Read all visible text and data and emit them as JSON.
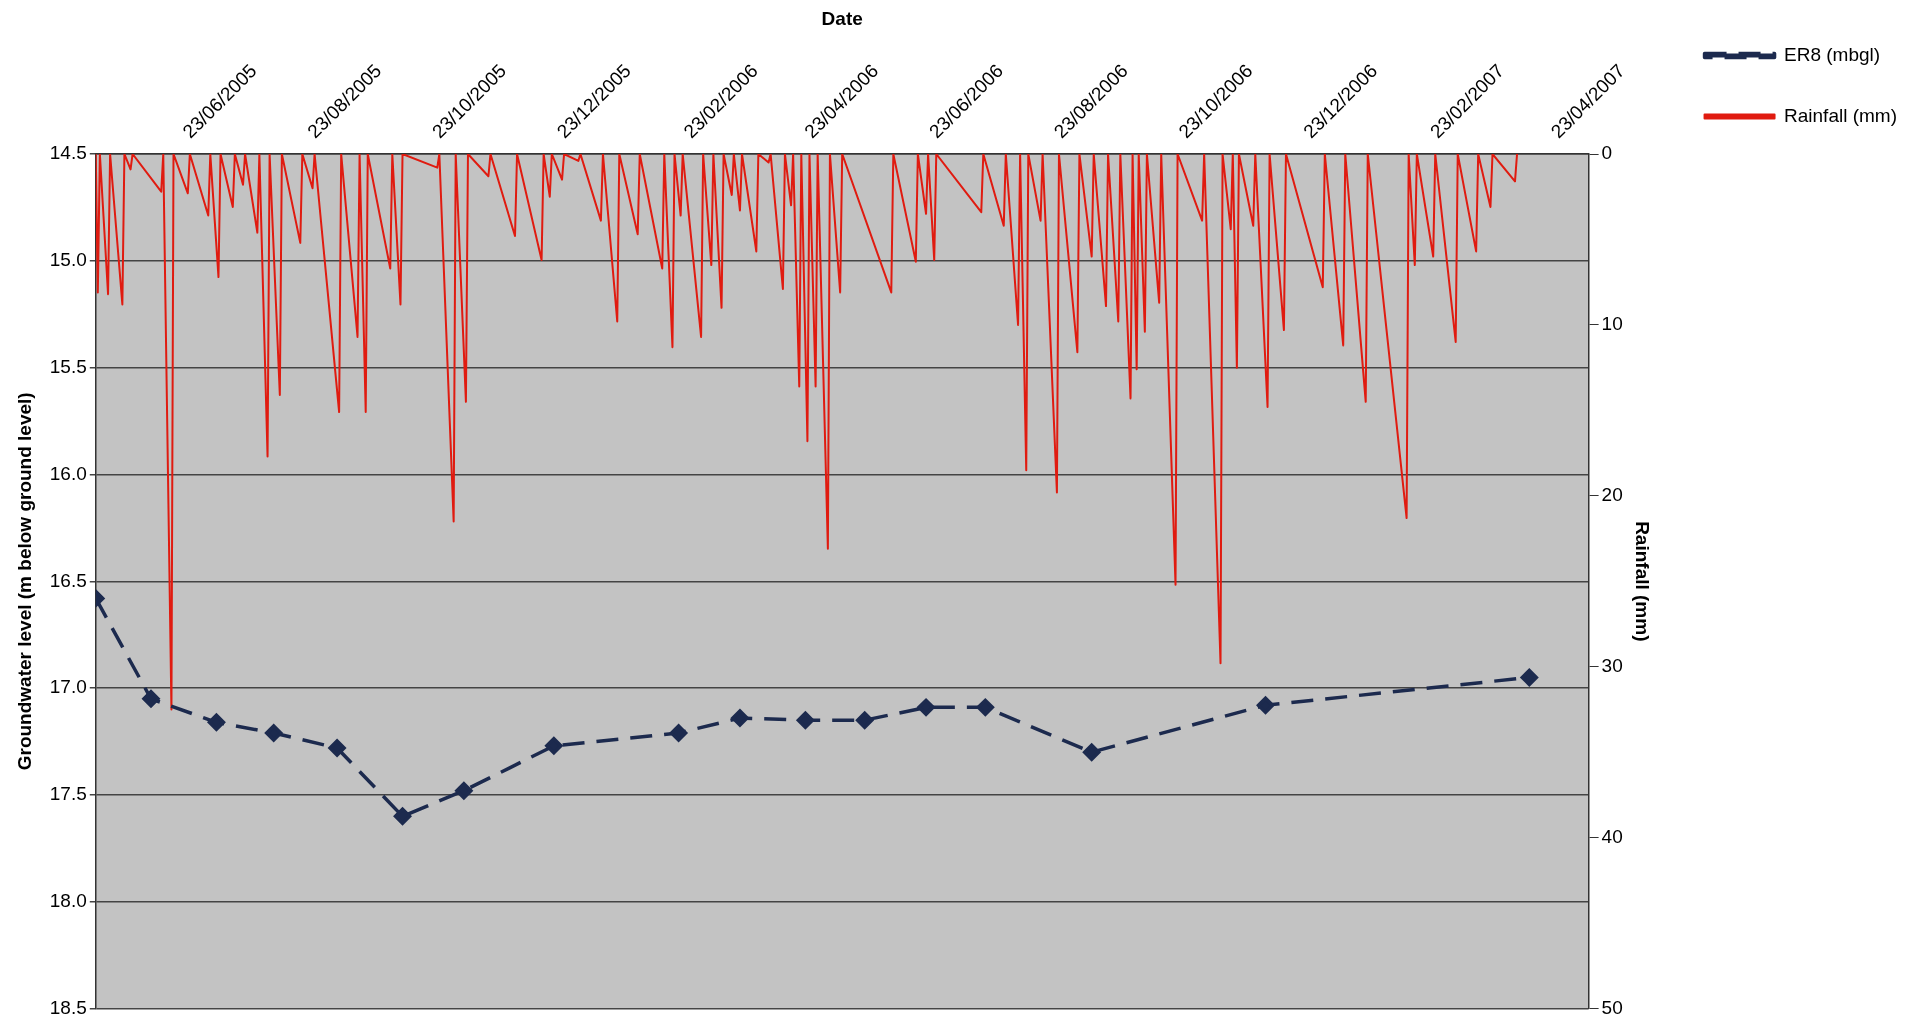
{
  "chart_data": {
    "type": "line",
    "xlabel": "Date",
    "ylabel": "Groundwater level (m below ground level)",
    "y2label": "Rainfall (mm)",
    "xlim": [
      "2005-04-23",
      "2007-04-23"
    ],
    "xticks": [
      {
        "value": "2005-06-23",
        "label": "23/06/2005"
      },
      {
        "value": "2005-08-23",
        "label": "23/08/2005"
      },
      {
        "value": "2005-10-23",
        "label": "23/10/2005"
      },
      {
        "value": "2005-12-23",
        "label": "23/12/2005"
      },
      {
        "value": "2006-02-23",
        "label": "23/02/2006"
      },
      {
        "value": "2006-04-23",
        "label": "23/04/2006"
      },
      {
        "value": "2006-06-23",
        "label": "23/06/2006"
      },
      {
        "value": "2006-08-23",
        "label": "23/08/2006"
      },
      {
        "value": "2006-10-23",
        "label": "23/10/2006"
      },
      {
        "value": "2006-12-23",
        "label": "23/12/2006"
      },
      {
        "value": "2007-02-23",
        "label": "23/02/2007"
      },
      {
        "value": "2007-04-23",
        "label": "23/04/2007"
      }
    ],
    "ylim": [
      18.5,
      14.5
    ],
    "yticks": [
      14.5,
      {
        "value": 15,
        "label": "15.0"
      },
      15.5,
      {
        "value": 16,
        "label": "16.0"
      },
      16.5,
      {
        "value": 17,
        "label": "17.0"
      },
      17.5,
      {
        "value": 18,
        "label": "18.0"
      },
      18.5
    ],
    "y2lim": [
      50,
      0
    ],
    "y2ticks": [
      0,
      10,
      20,
      30,
      40,
      50
    ],
    "grid": "y",
    "legend": "right",
    "series": [
      {
        "name": "ER8 (mbgl)",
        "type": "line",
        "color": "#1c2a4e",
        "marker": "diamond",
        "line_style": "dashed",
        "x": [
          "2005-04-23",
          "2005-05-20",
          "2005-06-21",
          "2005-07-19",
          "2005-08-19",
          "2005-09-20",
          "2005-10-20",
          "2005-12-03",
          "2006-02-02",
          "2006-03-04",
          "2006-04-05",
          "2006-05-04",
          "2006-06-03",
          "2006-07-02",
          "2006-08-23",
          "2006-11-16",
          "2007-03-25"
        ],
        "values": [
          16.58,
          17.05,
          17.16,
          17.21,
          17.28,
          17.6,
          17.48,
          17.27,
          17.21,
          17.14,
          17.15,
          17.15,
          17.09,
          17.09,
          17.3,
          17.08,
          16.95
        ]
      },
      {
        "name": "Rainfall (mm)",
        "type": "line",
        "axis": "y2",
        "color": "#e01b10",
        "marker": "none",
        "line_style": "solid",
        "x": [
          "2005-04-23",
          "2005-04-24",
          "2005-04-25",
          "2005-04-29",
          "2005-04-30",
          "2005-05-06",
          "2005-05-07",
          "2005-05-10",
          "2005-05-11",
          "2005-05-25",
          "2005-05-26",
          "2005-05-30",
          "2005-05-31",
          "2005-06-07",
          "2005-06-08",
          "2005-06-17",
          "2005-06-18",
          "2005-06-22",
          "2005-06-23",
          "2005-06-29",
          "2005-06-30",
          "2005-07-04",
          "2005-07-05",
          "2005-07-11",
          "2005-07-12",
          "2005-07-16",
          "2005-07-17",
          "2005-07-22",
          "2005-07-23",
          "2005-08-01",
          "2005-08-02",
          "2005-08-07",
          "2005-08-08",
          "2005-08-20",
          "2005-08-21",
          "2005-08-29",
          "2005-08-30",
          "2005-09-02",
          "2005-09-03",
          "2005-09-14",
          "2005-09-15",
          "2005-09-19",
          "2005-09-20",
          "2005-10-07",
          "2005-10-08",
          "2005-10-15",
          "2005-10-16",
          "2005-10-21",
          "2005-10-22",
          "2005-11-01",
          "2005-11-02",
          "2005-11-14",
          "2005-11-15",
          "2005-11-27",
          "2005-11-28",
          "2005-12-01",
          "2005-12-02",
          "2005-12-07",
          "2005-12-08",
          "2005-12-15",
          "2005-12-16",
          "2005-12-26",
          "2005-12-27",
          "2006-01-03",
          "2006-01-04",
          "2006-01-13",
          "2006-01-14",
          "2006-01-25",
          "2006-01-26",
          "2006-01-30",
          "2006-01-31",
          "2006-02-03",
          "2006-02-04",
          "2006-02-13",
          "2006-02-14",
          "2006-02-18",
          "2006-02-19",
          "2006-02-23",
          "2006-02-24",
          "2006-02-28",
          "2006-03-01",
          "2006-03-04",
          "2006-03-05",
          "2006-03-12",
          "2006-03-13",
          "2006-03-18",
          "2006-03-19",
          "2006-03-25",
          "2006-03-26",
          "2006-03-29",
          "2006-03-30",
          "2006-04-02",
          "2006-04-03",
          "2006-04-06",
          "2006-04-07",
          "2006-04-10",
          "2006-04-11",
          "2006-04-16",
          "2006-04-17",
          "2006-04-22",
          "2006-04-23",
          "2006-05-17",
          "2006-05-18",
          "2006-05-29",
          "2006-05-30",
          "2006-06-03",
          "2006-06-04",
          "2006-06-07",
          "2006-06-08",
          "2006-06-30",
          "2006-07-01",
          "2006-07-11",
          "2006-07-12",
          "2006-07-18",
          "2006-07-19",
          "2006-07-22",
          "2006-07-23",
          "2006-07-29",
          "2006-07-30",
          "2006-08-06",
          "2006-08-07",
          "2006-08-16",
          "2006-08-17",
          "2006-08-23",
          "2006-08-24",
          "2006-08-30",
          "2006-08-31",
          "2006-09-05",
          "2006-09-06",
          "2006-09-11",
          "2006-09-12",
          "2006-09-14",
          "2006-09-15",
          "2006-09-18",
          "2006-09-19",
          "2006-09-25",
          "2006-09-26",
          "2006-10-03",
          "2006-10-04",
          "2006-10-16",
          "2006-10-17",
          "2006-10-25",
          "2006-10-26",
          "2006-10-30",
          "2006-10-31",
          "2006-11-02",
          "2006-11-03",
          "2006-11-10",
          "2006-11-11",
          "2006-11-17",
          "2006-11-18",
          "2006-11-25",
          "2006-11-26",
          "2006-12-14",
          "2006-12-15",
          "2006-12-24",
          "2006-12-25",
          "2007-01-04",
          "2007-01-05",
          "2007-01-24",
          "2007-01-25",
          "2007-01-28",
          "2007-01-29",
          "2007-02-06",
          "2007-02-07",
          "2007-02-17",
          "2007-02-18",
          "2007-02-27",
          "2007-02-28",
          "2007-03-06",
          "2007-03-07",
          "2007-03-18",
          "2007-03-19"
        ],
        "values": [
          0,
          8.1,
          0,
          8.2,
          0,
          8.8,
          0,
          0.9,
          0,
          2.2,
          0,
          32.5,
          0,
          2.3,
          0,
          3.6,
          0,
          7.2,
          0,
          3.1,
          0,
          1.8,
          0,
          4.6,
          0,
          17.7,
          0,
          14.1,
          0,
          5.2,
          0,
          2.0,
          0,
          15.1,
          0,
          10.7,
          0,
          15.1,
          0,
          6.7,
          0,
          8.8,
          0,
          0.8,
          0,
          21.5,
          0,
          14.5,
          0,
          1.3,
          0,
          4.8,
          0,
          6.2,
          0,
          2.5,
          0,
          1.5,
          0,
          0.4,
          0,
          3.9,
          0,
          9.8,
          0,
          4.7,
          0,
          6.7,
          0,
          11.3,
          0,
          3.6,
          0,
          10.7,
          0,
          6.5,
          0,
          9.0,
          0,
          2.4,
          0,
          3.3,
          0,
          5.7,
          0,
          0.5,
          0,
          7.9,
          0,
          3.0,
          0,
          13.6,
          0,
          16.8,
          0,
          13.6,
          0,
          23.1,
          0,
          8.1,
          0,
          8.1,
          0,
          6.3,
          0,
          3.5,
          0,
          6.2,
          0,
          3.4,
          0,
          4.2,
          0,
          10.0,
          0,
          18.5,
          0,
          3.9,
          0,
          19.8,
          0,
          11.6,
          0,
          6.0,
          0,
          8.9,
          0,
          9.8,
          0,
          14.3,
          0,
          12.6,
          0,
          10.4,
          0,
          8.7,
          0,
          25.2,
          0,
          3.9,
          0,
          29.8,
          0,
          4.4,
          0,
          12.5,
          0,
          4.2,
          0,
          14.8,
          0,
          10.3,
          0,
          7.8,
          0,
          11.2,
          0,
          14.5,
          0,
          21.3,
          0,
          6.5,
          0,
          6.0,
          0,
          11.0,
          0,
          5.7,
          0,
          3.1,
          0,
          1.6,
          0
        ]
      }
    ]
  }
}
